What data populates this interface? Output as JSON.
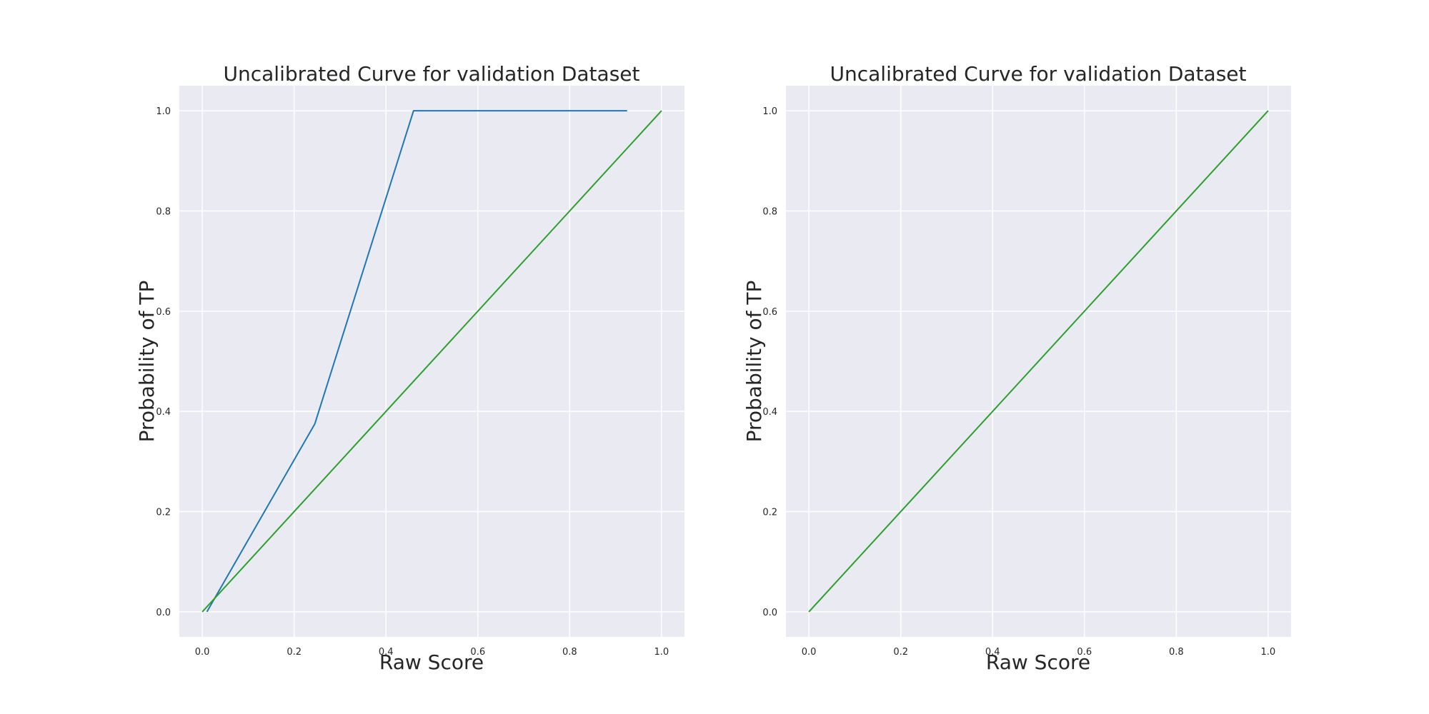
{
  "chart_data": [
    {
      "type": "line",
      "title": "Uncalibrated Curve for validation Dataset",
      "xlabel": "Raw Score",
      "ylabel": "Probability of TP",
      "xlim": [
        -0.05,
        1.05
      ],
      "ylim": [
        -0.05,
        1.05
      ],
      "xticks": [
        "0.0",
        "0.2",
        "0.4",
        "0.6",
        "0.8",
        "1.0"
      ],
      "yticks": [
        "0.0",
        "0.2",
        "0.4",
        "0.6",
        "0.8",
        "1.0"
      ],
      "grid": true,
      "series": [
        {
          "color": "#1f77b4",
          "x": [
            0.01,
            0.245,
            0.46,
            0.925
          ],
          "y": [
            0.0,
            0.375,
            1.0,
            1.0
          ]
        },
        {
          "color": "#2ca02c",
          "x": [
            0.0,
            1.0
          ],
          "y": [
            0.0,
            1.0
          ]
        }
      ]
    },
    {
      "type": "line",
      "title": "Uncalibrated Curve for validation Dataset",
      "xlabel": "Raw Score",
      "ylabel": "Probability of TP",
      "xlim": [
        -0.05,
        1.05
      ],
      "ylim": [
        -0.05,
        1.05
      ],
      "xticks": [
        "0.0",
        "0.2",
        "0.4",
        "0.6",
        "0.8",
        "1.0"
      ],
      "yticks": [
        "0.0",
        "0.2",
        "0.4",
        "0.6",
        "0.8",
        "1.0"
      ],
      "grid": true,
      "series": [
        {
          "color": "#2ca02c",
          "x": [
            0.0,
            1.0
          ],
          "y": [
            0.0,
            1.0
          ]
        }
      ]
    }
  ]
}
